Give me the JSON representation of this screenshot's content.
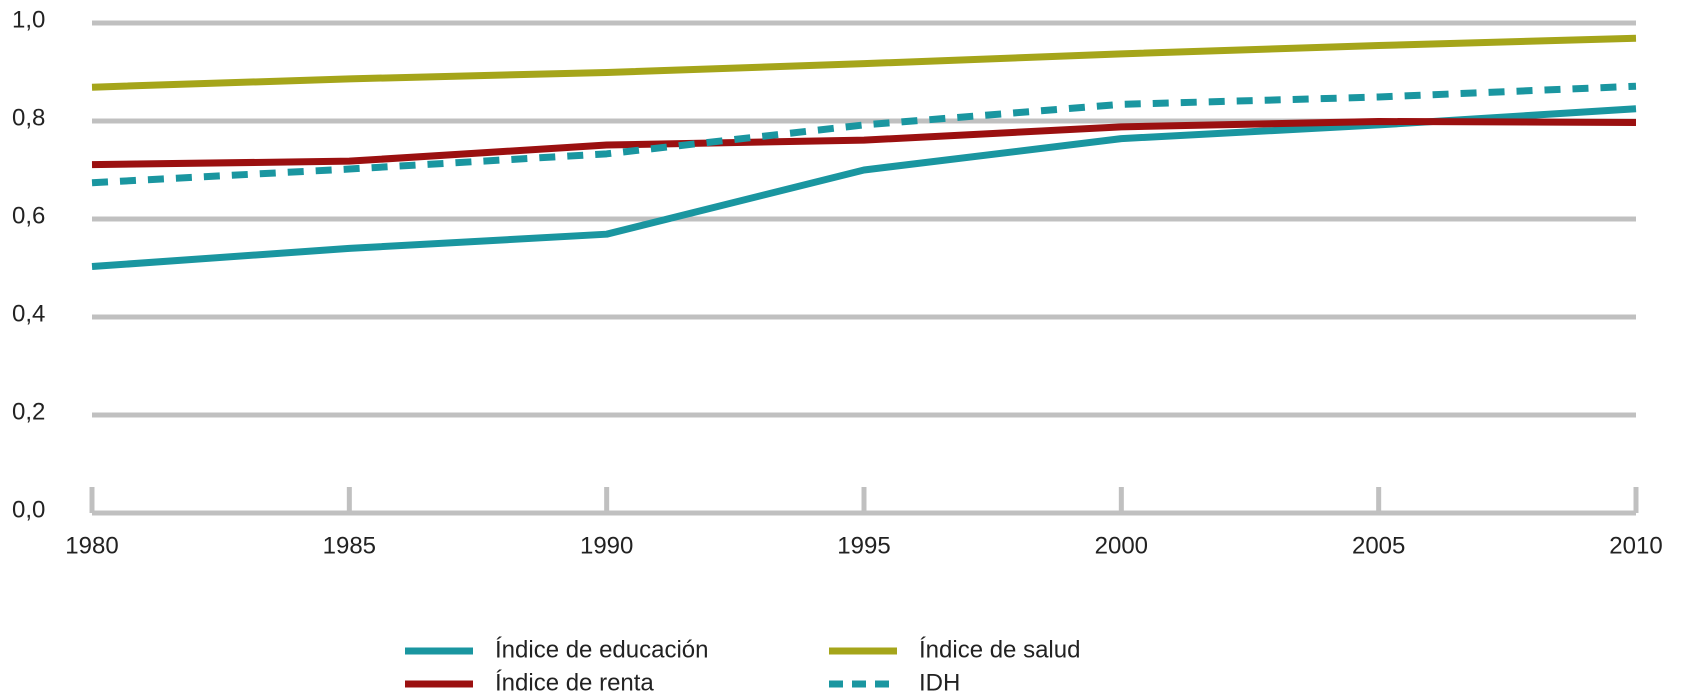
{
  "chart_data": {
    "type": "line",
    "x": [
      1980,
      1985,
      1990,
      1995,
      2000,
      2005,
      2010
    ],
    "series": [
      {
        "name": "Índice de educación",
        "color": "#1a96a0",
        "dash": false,
        "values": [
          0.503,
          0.54,
          0.569,
          0.7,
          0.764,
          0.792,
          0.825
        ]
      },
      {
        "name": "Índice de renta",
        "color": "#9b1010",
        "dash": false,
        "values": [
          0.711,
          0.718,
          0.751,
          0.761,
          0.788,
          0.799,
          0.797
        ]
      },
      {
        "name": "Índice de salud",
        "color": "#a5a51a",
        "dash": false,
        "values": [
          0.869,
          0.886,
          0.899,
          0.917,
          0.937,
          0.954,
          0.969
        ]
      },
      {
        "name": "IDH",
        "color": "#1a96a0",
        "dash": true,
        "values": [
          0.674,
          0.702,
          0.733,
          0.792,
          0.834,
          0.849,
          0.871
        ]
      }
    ],
    "xlim": [
      1980,
      2010
    ],
    "xticks": [
      1980,
      1985,
      1990,
      1995,
      2000,
      2005,
      2010
    ],
    "ylim": [
      0,
      1
    ],
    "yticks": [
      {
        "value": 0,
        "label": "0,0"
      },
      {
        "value": 0.2,
        "label": "0,2"
      },
      {
        "value": 0.4,
        "label": "0,4"
      },
      {
        "value": 0.6,
        "label": "0,6"
      },
      {
        "value": 0.8,
        "label": "0,8"
      },
      {
        "value": 1,
        "label": "1,0"
      }
    ],
    "grid": true
  }
}
